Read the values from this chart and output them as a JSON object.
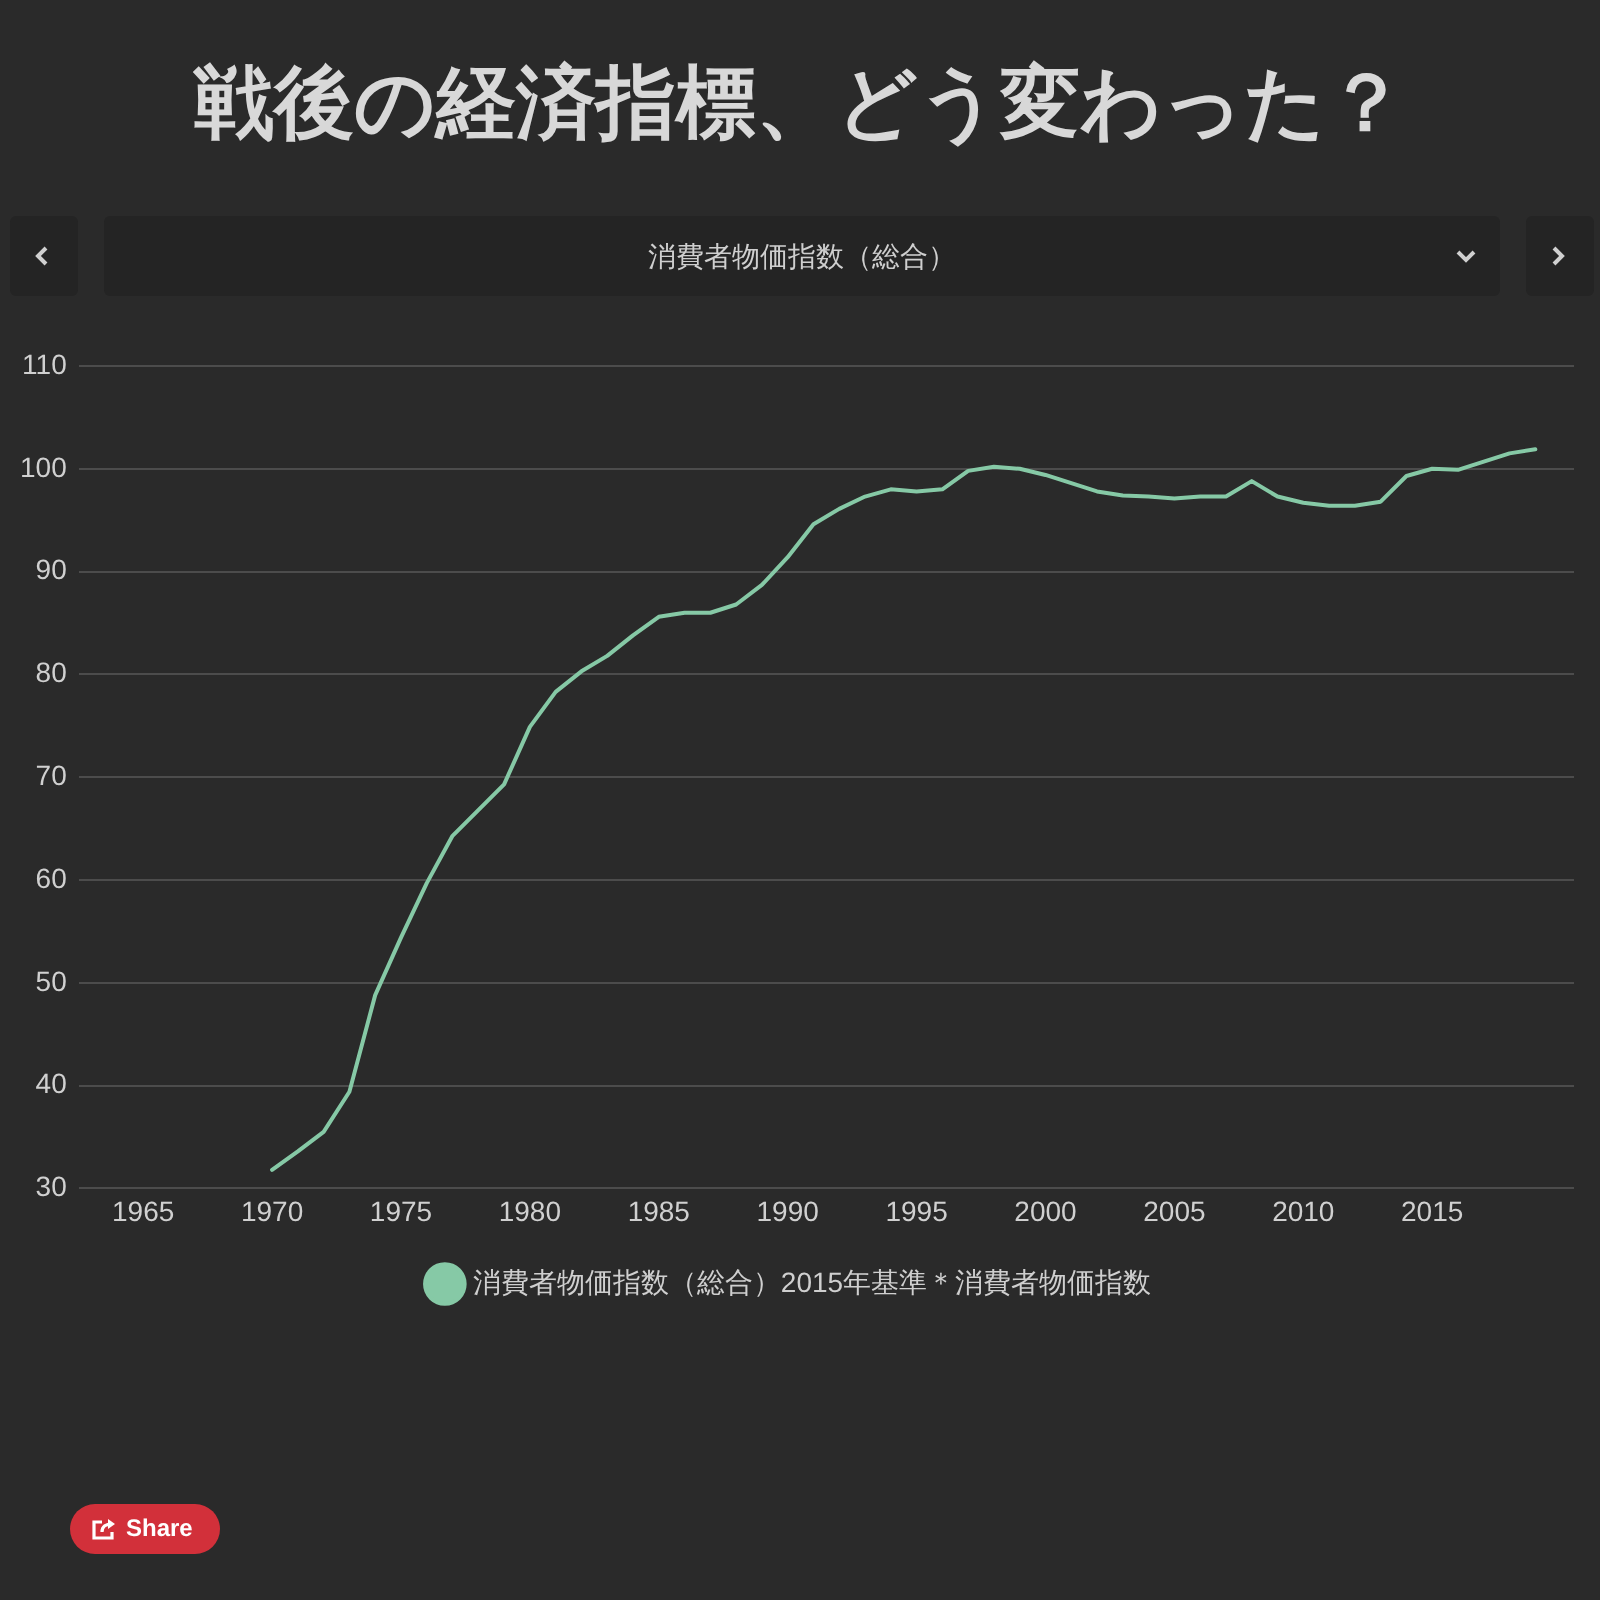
{
  "chart_data": {
    "type": "line",
    "title": "戦後の経済指標、どう変わった？",
    "subtitle": "消費者物価指数（総合）",
    "x": [
      1970,
      1971,
      1972,
      1973,
      1974,
      1975,
      1976,
      1977,
      1978,
      1979,
      1980,
      1981,
      1982,
      1983,
      1984,
      1985,
      1986,
      1987,
      1988,
      1989,
      1990,
      1991,
      1992,
      1993,
      1994,
      1995,
      1996,
      1997,
      1998,
      1999,
      2000,
      2001,
      2002,
      2003,
      2004,
      2005,
      2006,
      2007,
      2008,
      2009,
      2010,
      2011,
      2012,
      2013,
      2014,
      2015,
      2016,
      2017,
      2018,
      2019
    ],
    "series": [
      {
        "name": "消費者物価指数（総合）2015年基準＊消費者物価指数",
        "color": "#86c9a6",
        "values": [
          31.8,
          33.6,
          35.5,
          39.4,
          48.8,
          54.4,
          59.7,
          64.3,
          66.8,
          69.3,
          74.9,
          78.3,
          80.3,
          81.8,
          83.8,
          85.6,
          86.0,
          86.0,
          86.8,
          88.7,
          91.4,
          94.6,
          96.1,
          97.3,
          98.0,
          97.8,
          98.0,
          99.8,
          100.2,
          100.0,
          99.4,
          98.6,
          97.8,
          97.4,
          97.3,
          97.1,
          97.3,
          97.3,
          98.8,
          97.3,
          96.7,
          96.4,
          96.4,
          96.8,
          99.3,
          100.0,
          99.9,
          100.7,
          101.5,
          101.9
        ]
      }
    ],
    "xlim": [
      1962.5,
      2020.5
    ],
    "xticks": [
      1965,
      1970,
      1975,
      1980,
      1985,
      1990,
      1995,
      2000,
      2005,
      2010,
      2015
    ],
    "ylim": [
      30,
      110
    ],
    "yticks": [
      30,
      40,
      50,
      60,
      70,
      80,
      90,
      100,
      110
    ],
    "grid": "y",
    "legend": "bottom",
    "line_style": "solid",
    "annotations": [
      "Share"
    ]
  }
}
